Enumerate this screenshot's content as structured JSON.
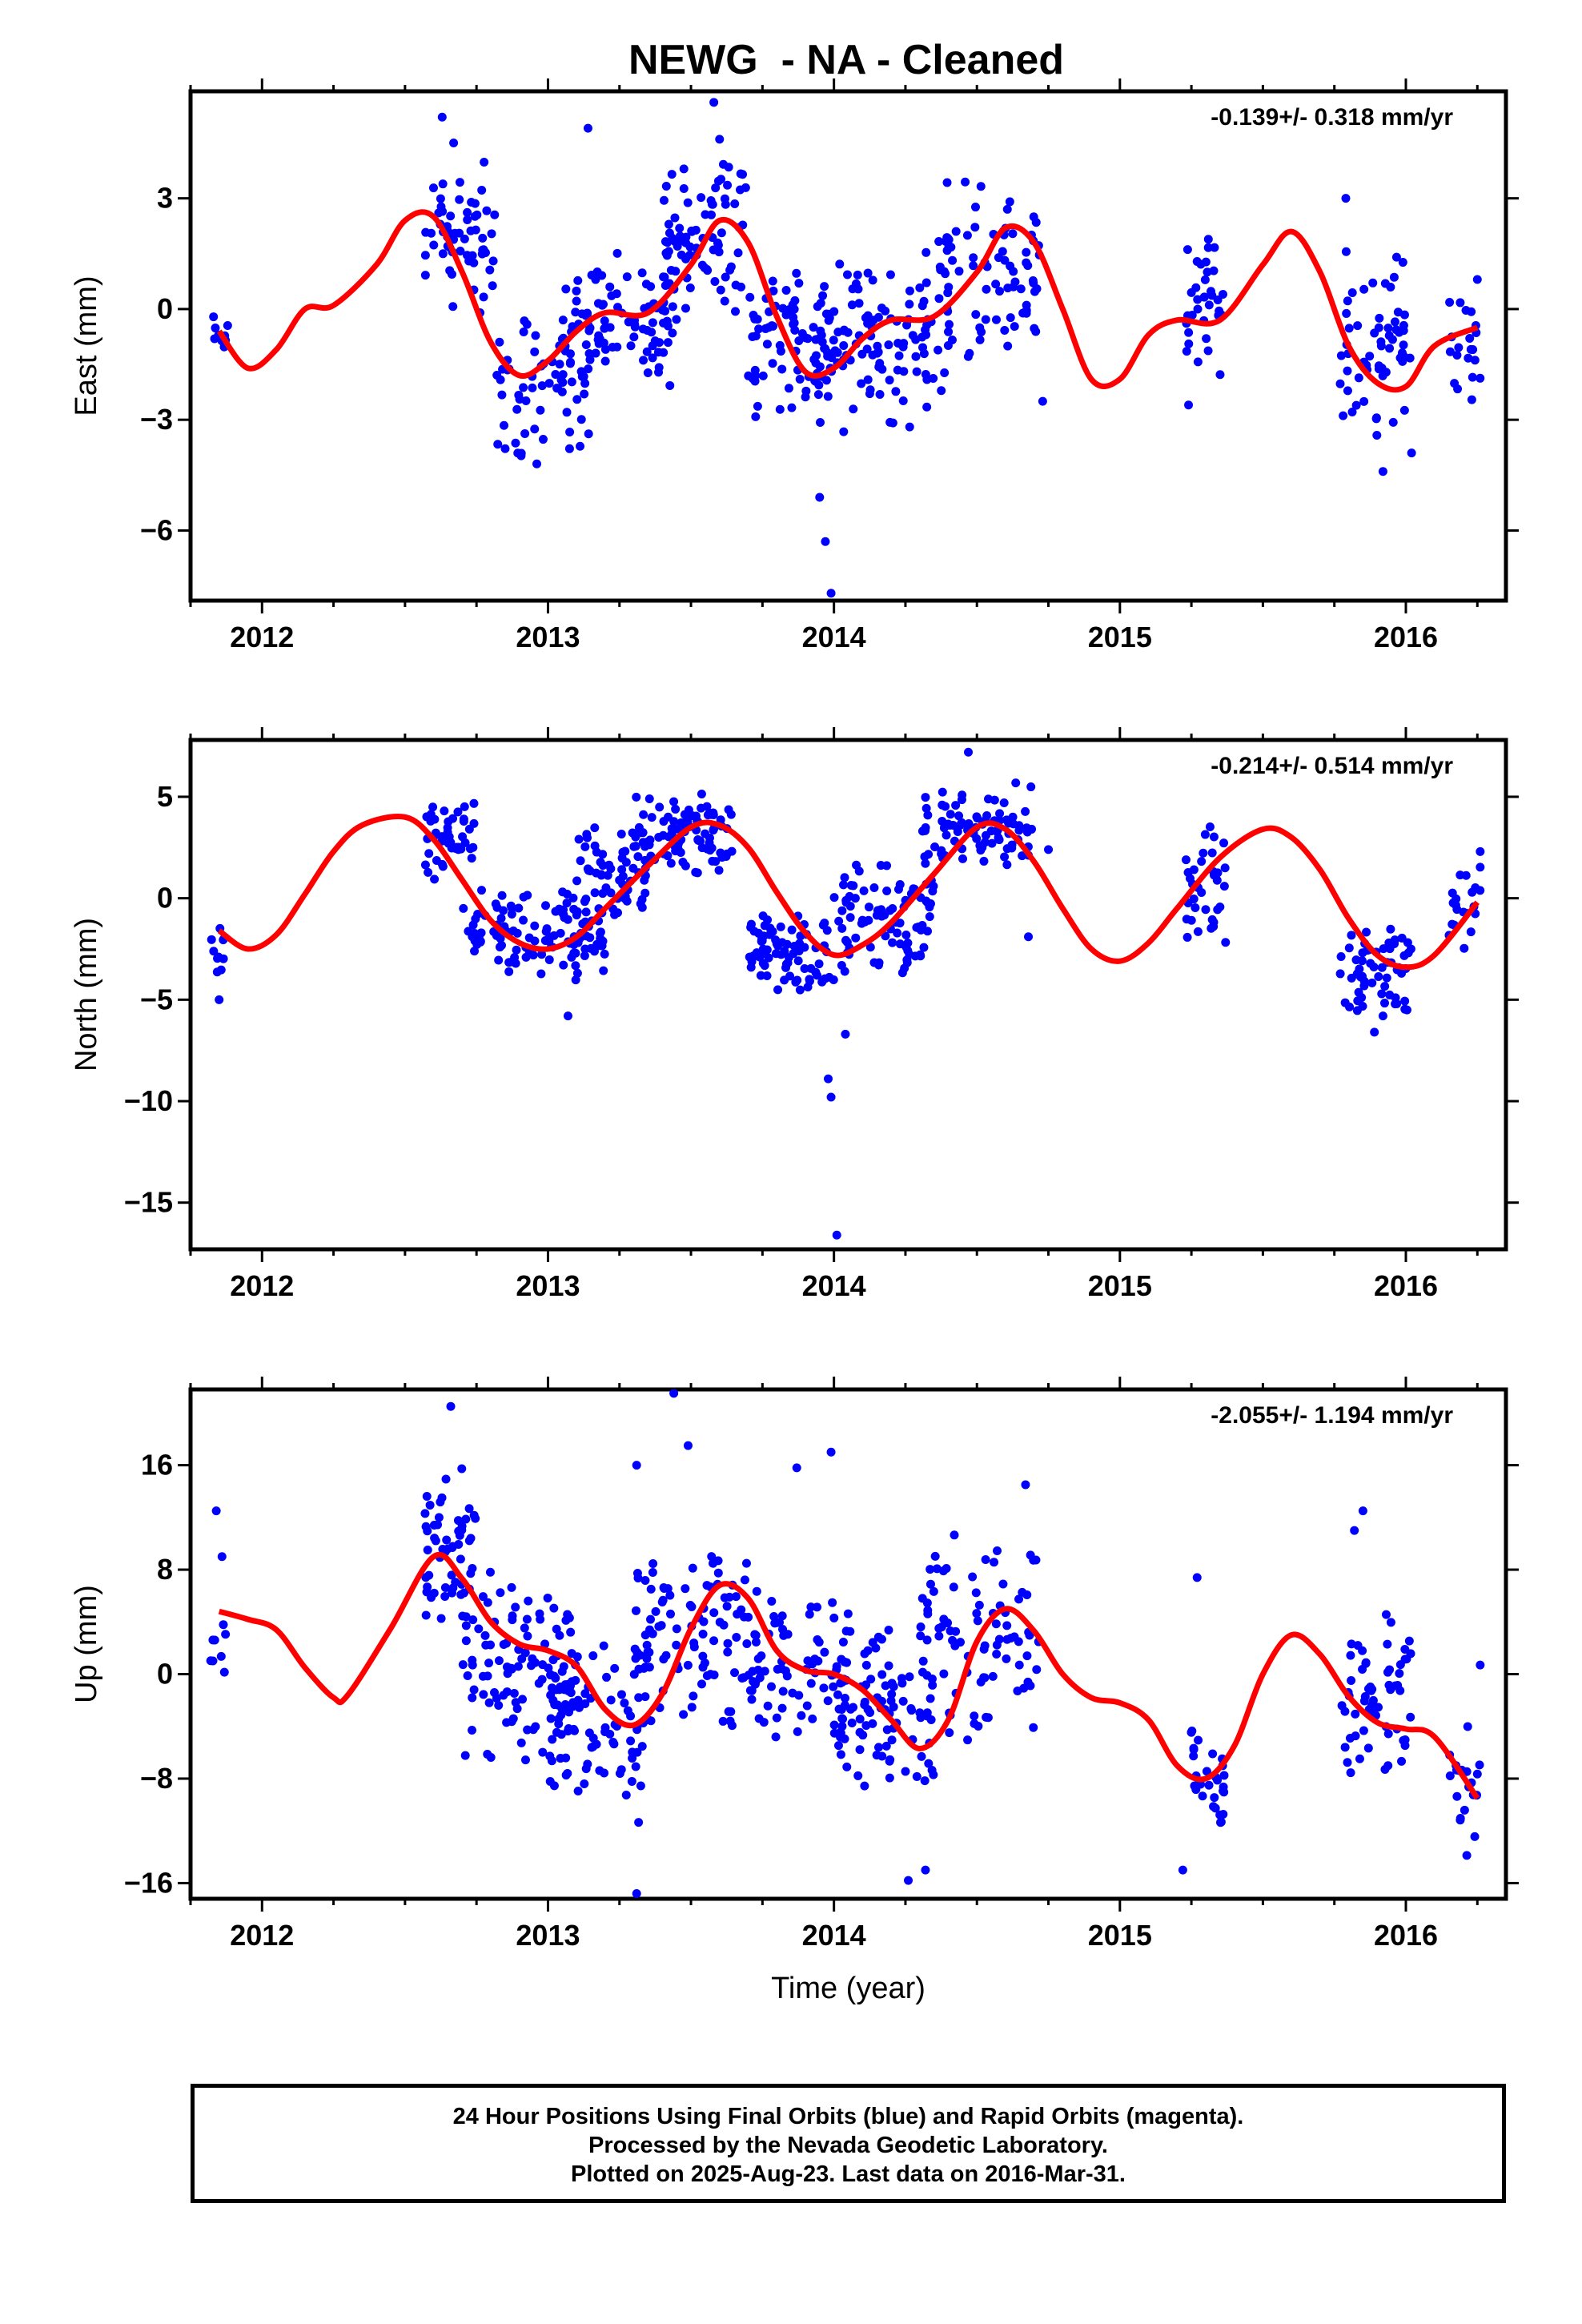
{
  "title": "NEWG  - NA - Cleaned",
  "footer": {
    "line1": "24 Hour Positions Using Final Orbits (blue) and Rapid Orbits (magenta).",
    "line2": "Processed by the Nevada Geodetic Laboratory.",
    "line3": "Plotted on 2025-Aug-23. Last data on 2016-Mar-31."
  },
  "colors": {
    "points": "#0000ff",
    "fit": "#ff0000",
    "frame": "#000000"
  },
  "chart_data": [
    {
      "type": "scatter",
      "ylabel": "East (mm)",
      "xlabel": "",
      "rate": "-0.139+/- 0.318 mm/yr",
      "xlim": [
        2011.75,
        2016.35
      ],
      "ylim": [
        -7.9,
        5.9
      ],
      "xticks": [
        2012,
        2013,
        2014,
        2015,
        2016
      ],
      "yticks": [
        -6,
        -3,
        0,
        3
      ],
      "fit_curve": {
        "x": [
          2011.85,
          2011.95,
          2012.05,
          2012.15,
          2012.25,
          2012.4,
          2012.5,
          2012.6,
          2012.7,
          2012.8,
          2012.9,
          2013.0,
          2013.1,
          2013.2,
          2013.35,
          2013.5,
          2013.6,
          2013.7,
          2013.8,
          2013.9,
          2014.0,
          2014.1,
          2014.2,
          2014.35,
          2014.5,
          2014.6,
          2014.7,
          2014.8,
          2014.9,
          2015.0,
          2015.1,
          2015.2,
          2015.35,
          2015.5,
          2015.6,
          2015.7,
          2015.8,
          2015.9,
          2016.0,
          2016.1,
          2016.25
        ],
        "y": [
          -0.6,
          -1.6,
          -1.1,
          0.0,
          0.1,
          1.2,
          2.4,
          2.5,
          1.0,
          -0.9,
          -1.8,
          -1.4,
          -0.6,
          -0.1,
          -0.1,
          1.2,
          2.4,
          1.8,
          -0.2,
          -1.7,
          -1.6,
          -0.8,
          -0.3,
          -0.2,
          1.0,
          2.2,
          1.8,
          0.0,
          -1.9,
          -1.9,
          -0.7,
          -0.3,
          -0.3,
          1.2,
          2.1,
          1.0,
          -1.0,
          -2.0,
          -2.1,
          -1.0,
          -0.5
        ]
      },
      "clusters": [
        {
          "x": [
            2011.82,
            2011.88
          ],
          "y": [
            -1.8,
            0.2
          ],
          "n": 10
        },
        {
          "x": [
            2012.57,
            2012.82
          ],
          "y": [
            -0.5,
            4.5
          ],
          "n": 60
        },
        {
          "x": [
            2012.82,
            2013.15
          ],
          "y": [
            -4.5,
            0.5
          ],
          "n": 70
        },
        {
          "x": [
            2013.05,
            2013.45
          ],
          "y": [
            -2.4,
            1.6
          ],
          "n": 90
        },
        {
          "x": [
            2013.4,
            2013.7
          ],
          "y": [
            -0.2,
            4.3
          ],
          "n": 80
        },
        {
          "x": [
            2013.7,
            2014.0
          ],
          "y": [
            -3.2,
            1.4
          ],
          "n": 80
        },
        {
          "x": [
            2013.95,
            2014.4
          ],
          "y": [
            -3.6,
            1.8
          ],
          "n": 110
        },
        {
          "x": [
            2014.35,
            2014.72
          ],
          "y": [
            -1.6,
            4.0
          ],
          "n": 80
        },
        {
          "x": [
            2015.23,
            2015.37
          ],
          "y": [
            -2.0,
            2.2
          ],
          "n": 35
        },
        {
          "x": [
            2015.77,
            2016.02
          ],
          "y": [
            -3.6,
            2.0
          ],
          "n": 60
        },
        {
          "x": [
            2016.15,
            2016.26
          ],
          "y": [
            -2.8,
            0.6
          ],
          "n": 20
        }
      ],
      "outliers": {
        "x": [
          2012.63,
          2012.67,
          2013.14,
          2013.58,
          2013.6,
          2013.95,
          2013.97,
          2013.99,
          2014.73,
          2015.24,
          2015.79,
          2015.92,
          2016.02,
          2016.25
        ],
        "y": [
          5.2,
          4.5,
          4.9,
          5.6,
          4.6,
          -5.1,
          -6.3,
          -7.7,
          -2.5,
          -2.6,
          3.0,
          -4.4,
          -3.9,
          0.8
        ]
      }
    },
    {
      "type": "scatter",
      "ylabel": "North (mm)",
      "xlabel": "",
      "rate": "-0.214+/- 0.514 mm/yr",
      "xlim": [
        2011.75,
        2016.35
      ],
      "ylim": [
        -17.3,
        7.8
      ],
      "xticks": [
        2012,
        2013,
        2014,
        2015,
        2016
      ],
      "yticks": [
        -15,
        -10,
        -5,
        0,
        5
      ],
      "fit_curve": {
        "x": [
          2011.85,
          2011.95,
          2012.05,
          2012.15,
          2012.25,
          2012.35,
          2012.5,
          2012.6,
          2012.7,
          2012.8,
          2012.9,
          2013.0,
          2013.1,
          2013.2,
          2013.35,
          2013.5,
          2013.6,
          2013.7,
          2013.8,
          2013.9,
          2014.0,
          2014.1,
          2014.2,
          2014.35,
          2014.5,
          2014.6,
          2014.7,
          2014.8,
          2014.9,
          2015.0,
          2015.1,
          2015.2,
          2015.35,
          2015.5,
          2015.6,
          2015.7,
          2015.8,
          2015.9,
          2016.0,
          2016.1,
          2016.25
        ],
        "y": [
          -1.6,
          -2.5,
          -1.8,
          0.2,
          2.3,
          3.6,
          4.0,
          2.9,
          0.9,
          -1.1,
          -2.2,
          -2.5,
          -1.9,
          -0.5,
          1.6,
          3.5,
          3.6,
          2.5,
          0.3,
          -1.7,
          -2.8,
          -2.3,
          -1.2,
          1.2,
          3.5,
          3.4,
          1.8,
          -0.5,
          -2.5,
          -3.1,
          -2.2,
          -0.5,
          2.0,
          3.4,
          3.0,
          1.4,
          -1.0,
          -2.8,
          -3.4,
          -2.8,
          -0.2
        ]
      },
      "clusters": [
        {
          "x": [
            2011.82,
            2011.88
          ],
          "y": [
            -5.0,
            -1.0
          ],
          "n": 10
        },
        {
          "x": [
            2012.57,
            2012.75
          ],
          "y": [
            0.8,
            5.0
          ],
          "n": 45
        },
        {
          "x": [
            2012.7,
            2013.2
          ],
          "y": [
            -4.2,
            0.5
          ],
          "n": 120
        },
        {
          "x": [
            2013.1,
            2013.35
          ],
          "y": [
            -1.5,
            3.8
          ],
          "n": 60
        },
        {
          "x": [
            2013.3,
            2013.65
          ],
          "y": [
            1.0,
            5.5
          ],
          "n": 90
        },
        {
          "x": [
            2013.7,
            2014.0
          ],
          "y": [
            -5.0,
            -0.5
          ],
          "n": 80
        },
        {
          "x": [
            2014.0,
            2014.35
          ],
          "y": [
            -4.0,
            2.0
          ],
          "n": 90
        },
        {
          "x": [
            2014.3,
            2014.7
          ],
          "y": [
            1.0,
            6.0
          ],
          "n": 90
        },
        {
          "x": [
            2015.23,
            2015.37
          ],
          "y": [
            -2.5,
            3.8
          ],
          "n": 35
        },
        {
          "x": [
            2015.77,
            2016.02
          ],
          "y": [
            -6.0,
            -1.0
          ],
          "n": 60
        },
        {
          "x": [
            2016.15,
            2016.26
          ],
          "y": [
            -3.0,
            2.2
          ],
          "n": 20
        }
      ],
      "outliers": {
        "x": [
          2011.85,
          2013.07,
          2013.98,
          2013.99,
          2014.01,
          2014.04,
          2014.47,
          2014.68,
          2014.75,
          2015.89,
          2015.92,
          2016.26
        ],
        "y": [
          -5.0,
          -5.8,
          -8.9,
          -9.8,
          -16.6,
          -6.7,
          7.2,
          -1.9,
          2.4,
          -6.6,
          -5.8,
          2.3
        ]
      }
    },
    {
      "type": "scatter",
      "ylabel": "Up (mm)",
      "xlabel": "Time (year)",
      "rate": "-2.055+/- 1.194 mm/yr",
      "xlim": [
        2011.75,
        2016.35
      ],
      "ylim": [
        -17.2,
        21.8
      ],
      "xticks": [
        2012,
        2013,
        2014,
        2015,
        2016
      ],
      "yticks": [
        -16,
        -8,
        0,
        8,
        16
      ],
      "fit_curve": {
        "x": [
          2011.85,
          2011.95,
          2012.05,
          2012.15,
          2012.25,
          2012.3,
          2012.45,
          2012.6,
          2012.7,
          2012.8,
          2012.9,
          2013.0,
          2013.1,
          2013.2,
          2013.3,
          2013.4,
          2013.5,
          2013.6,
          2013.7,
          2013.8,
          2013.9,
          2014.0,
          2014.1,
          2014.2,
          2014.3,
          2014.4,
          2014.5,
          2014.6,
          2014.7,
          2014.8,
          2014.9,
          2015.0,
          2015.1,
          2015.2,
          2015.3,
          2015.4,
          2015.5,
          2015.6,
          2015.7,
          2015.8,
          2015.9,
          2016.0,
          2016.1,
          2016.25
        ],
        "y": [
          4.8,
          4.2,
          3.4,
          0.5,
          -1.8,
          -1.6,
          3.5,
          9.0,
          7.3,
          4.0,
          2.3,
          1.8,
          0.6,
          -2.7,
          -3.9,
          -1.5,
          3.5,
          6.8,
          5.8,
          1.8,
          0.3,
          0.0,
          -1.2,
          -3.5,
          -5.7,
          -3.5,
          2.5,
          5.0,
          3.3,
          0.0,
          -1.8,
          -2.2,
          -3.5,
          -7.0,
          -8.0,
          -5.5,
          0.0,
          3.0,
          1.5,
          -1.7,
          -3.7,
          -4.2,
          -4.8,
          -9.5
        ]
      },
      "clusters": [
        {
          "x": [
            2011.82,
            2011.88
          ],
          "y": [
            -3.0,
            5.0
          ],
          "n": 8
        },
        {
          "x": [
            2012.57,
            2012.75
          ],
          "y": [
            3.0,
            17.0
          ],
          "n": 55
        },
        {
          "x": [
            2012.7,
            2013.1
          ],
          "y": [
            -8.0,
            9.0
          ],
          "n": 110
        },
        {
          "x": [
            2013.0,
            2013.35
          ],
          "y": [
            -12.0,
            3.0
          ],
          "n": 80
        },
        {
          "x": [
            2013.3,
            2013.7
          ],
          "y": [
            -6.0,
            12.0
          ],
          "n": 100
        },
        {
          "x": [
            2013.7,
            2014.05
          ],
          "y": [
            -6.0,
            7.0
          ],
          "n": 80
        },
        {
          "x": [
            2014.0,
            2014.35
          ],
          "y": [
            -10.0,
            4.0
          ],
          "n": 90
        },
        {
          "x": [
            2014.3,
            2014.72
          ],
          "y": [
            -6.0,
            11.0
          ],
          "n": 90
        },
        {
          "x": [
            2015.23,
            2015.37
          ],
          "y": [
            -12.0,
            -2.0
          ],
          "n": 30
        },
        {
          "x": [
            2015.77,
            2016.02
          ],
          "y": [
            -9.0,
            5.0
          ],
          "n": 60
        },
        {
          "x": [
            2016.15,
            2016.26
          ],
          "y": [
            -14.0,
            -3.0
          ],
          "n": 20
        }
      ],
      "outliers": {
        "x": [
          2011.84,
          2011.86,
          2012.66,
          2013.31,
          2013.44,
          2013.49,
          2013.87,
          2013.99,
          2014.67,
          2015.27,
          2015.82,
          2015.85,
          2016.26,
          2013.31,
          2014.26,
          2014.32,
          2015.22
        ],
        "y": [
          12.5,
          9.0,
          20.5,
          16.0,
          21.5,
          17.5,
          15.8,
          17.0,
          14.5,
          7.4,
          11.0,
          12.5,
          0.7,
          -16.8,
          -15.8,
          -15.0,
          -15.0
        ]
      }
    }
  ]
}
